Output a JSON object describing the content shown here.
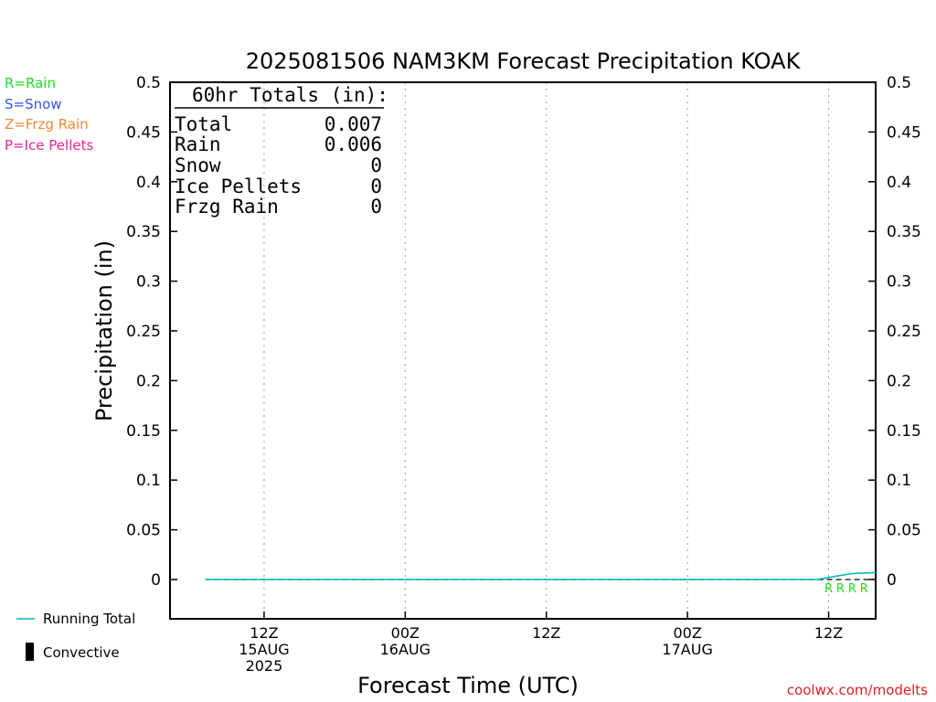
{
  "title": "2025081506 NAM3KM Forecast Precipitation KOAK",
  "type_legend": [
    {
      "label": "R=Rain",
      "color": "#22dd22"
    },
    {
      "label": "S=Snow",
      "color": "#3355ee"
    },
    {
      "label": "Z=Frzg Rain",
      "color": "#ee8833"
    },
    {
      "label": "P=Ice Pellets",
      "color": "#ee2299"
    }
  ],
  "totals": {
    "header": "60hr Totals (in):",
    "rows": [
      {
        "label": "Total",
        "value": "0.007"
      },
      {
        "label": "Rain",
        "value": "0.006"
      },
      {
        "label": "Snow",
        "value": "0"
      },
      {
        "label": "Ice Pellets",
        "value": "0"
      },
      {
        "label": "Frzg Rain",
        "value": "0"
      }
    ]
  },
  "bottom_legend": {
    "running_total": "Running Total",
    "convective": "Convective"
  },
  "watermark": "coolwx.com/modelts",
  "colors": {
    "running_total": "#00bbbb",
    "rain_marker": "#22dd22",
    "grid": "#999999"
  },
  "chart_data": {
    "type": "line",
    "title": "2025081506 NAM3KM Forecast Precipitation KOAK",
    "xlabel": "Forecast Time (UTC)",
    "ylabel": "Precipitation (in)",
    "ylim": [
      0,
      0.5
    ],
    "y_ticks": [
      "0",
      "0.05",
      "0.1",
      "0.15",
      "0.2",
      "0.25",
      "0.3",
      "0.35",
      "0.4",
      "0.45",
      "0.5"
    ],
    "xlim_forecast_hour": [
      -2,
      58
    ],
    "x_ticks": [
      {
        "hour": 6,
        "lines": [
          "12Z",
          "15AUG",
          "2025"
        ]
      },
      {
        "hour": 18,
        "lines": [
          "00Z",
          "16AUG"
        ]
      },
      {
        "hour": 30,
        "lines": [
          "12Z"
        ]
      },
      {
        "hour": 42,
        "lines": [
          "00Z",
          "17AUG"
        ]
      },
      {
        "hour": 54,
        "lines": [
          "12Z"
        ]
      }
    ],
    "grid": true,
    "series": [
      {
        "name": "Running Total",
        "x": [
          1,
          5,
          10,
          15,
          20,
          25,
          30,
          35,
          40,
          45,
          50,
          53,
          54,
          55,
          56,
          57,
          58
        ],
        "y": [
          0,
          0,
          0,
          0,
          0,
          0,
          0,
          0,
          0,
          0,
          0,
          0,
          0.002,
          0.004,
          0.006,
          0.0065,
          0.007
        ]
      }
    ],
    "convective": [],
    "precip_type_markers": {
      "symbol": "R",
      "x": [
        54,
        55,
        56,
        57
      ]
    }
  }
}
